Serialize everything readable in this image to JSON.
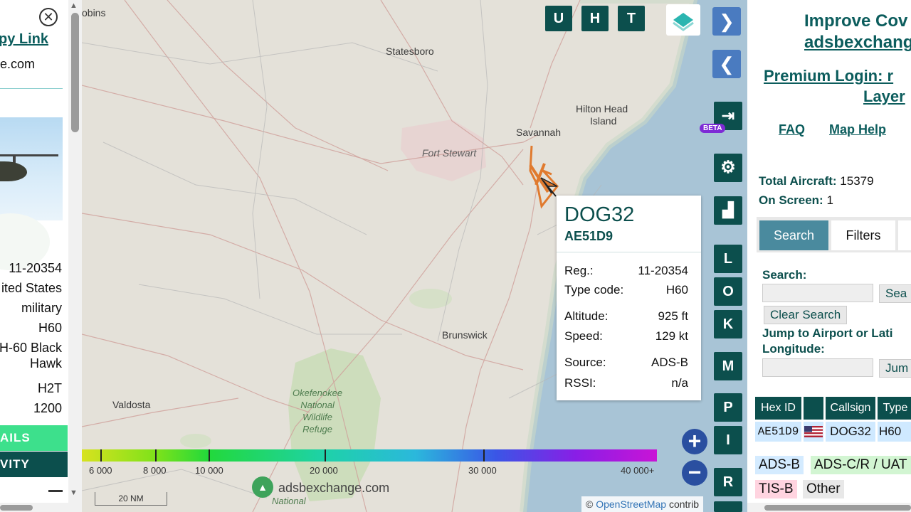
{
  "left_panel": {
    "close_icon": "close-icon",
    "copy_link": "py Link",
    "domain": "e.com",
    "rows": [
      "11-20354",
      "ited States",
      "military",
      "H60",
      "H-60 Black",
      "Hawk",
      "H2T",
      "1200"
    ],
    "btn_details": "AILS",
    "btn_activity": "VITY"
  },
  "map": {
    "cities": {
      "robins": "obins",
      "statesboro": "Statesboro",
      "savannah": "Savannah",
      "hilton_head_1": "Hilton Head",
      "hilton_head_2": "Island",
      "fort_stewart": "Fort Stewart",
      "brunswick": "Brunswick",
      "valdosta": "Valdosta",
      "okefenokee_1": "Okefenokee",
      "okefenokee_2": "National",
      "okefenokee_3": "Wildlife",
      "okefenokee_4": "Refuge",
      "national": "National"
    },
    "buttons": {
      "u": "U",
      "h": "H",
      "t": "T",
      "l": "L",
      "o": "O",
      "k": "K",
      "m": "M",
      "p": "P",
      "i": "I",
      "r": "R"
    },
    "beta": "BETA",
    "zoom_in": "+",
    "zoom_out": "−",
    "legend": [
      "6 000",
      "8 000",
      "10 000",
      "20 000",
      "30 000",
      "40 000+"
    ],
    "scale": "20 NM",
    "logo_text": "adsbexchange.com",
    "attribution_prefix": "©",
    "attribution_link": "OpenStreetMap",
    "attribution_suffix": "contrib"
  },
  "popup": {
    "callsign": "DOG32",
    "hex": "AE51D9",
    "reg_label": "Reg.:",
    "reg": "11-20354",
    "type_label": "Type code:",
    "type": "H60",
    "alt_label": "Altitude:",
    "alt": "925 ft",
    "speed_label": "Speed:",
    "speed": "129 kt",
    "source_label": "Source:",
    "source": "ADS-B",
    "rssi_label": "RSSI:",
    "rssi": "n/a"
  },
  "right_panel": {
    "improve_1": "Improve Cov",
    "improve_2": "adsbexchang",
    "premium_1": "Premium Login: r",
    "premium_2": "Layer",
    "faq": "FAQ",
    "map_help": "Map Help",
    "total_label": "Total Aircraft:",
    "total": "15379",
    "onscreen_label": "On Screen:",
    "onscreen": "1",
    "tab_search": "Search",
    "tab_filters": "Filters",
    "search_label": "Search:",
    "search_btn": "Sea",
    "clear_search": "Clear Search",
    "jump_label_1": "Jump to Airport or Lati",
    "jump_label_2": "Longitude:",
    "jump_btn": "Jum",
    "table_headers": [
      "Hex ID",
      "",
      "Callsign",
      "Type"
    ],
    "table_row": {
      "hex": "AE51D9",
      "flag": "US",
      "callsign": "DOG32",
      "type": "H60"
    },
    "sources": [
      "ADS-B",
      "ADS-C/R / UAT",
      "TIS-B",
      "Other"
    ]
  },
  "colors": {
    "brand_teal": "#0c4f4d",
    "nav_blue": "#4a7bc0",
    "track_orange": "#e07a2e"
  }
}
